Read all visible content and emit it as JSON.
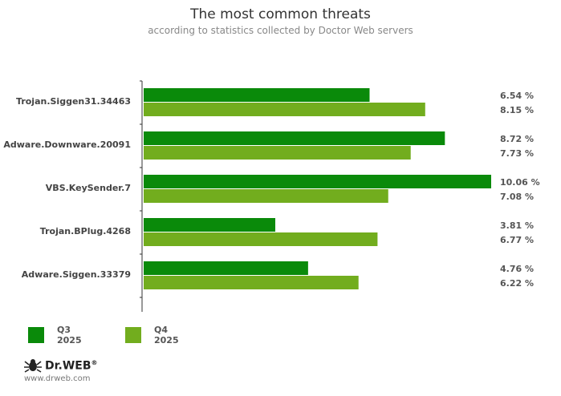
{
  "chart_data": {
    "type": "bar",
    "orientation": "horizontal",
    "title": "The most common threats",
    "subtitle": "according to statistics collected by Doctor Web servers",
    "categories": [
      "Trojan.Siggen31.34463",
      "Adware.Downware.20091",
      "VBS.KeySender.7",
      "Trojan.BPlug.4268",
      "Adware.Siggen.33379"
    ],
    "series": [
      {
        "name": "Q3 2025",
        "color": "#0a8a0a",
        "values": [
          6.54,
          8.72,
          10.06,
          3.81,
          4.76
        ]
      },
      {
        "name": "Q4 2025",
        "color": "#72ad1e",
        "values": [
          8.15,
          7.73,
          7.08,
          6.77,
          6.22
        ]
      }
    ],
    "value_labels": [
      [
        "6.54 %",
        "8.15 %"
      ],
      [
        "8.72 %",
        "7.73 %"
      ],
      [
        "10.06 %",
        "7.08 %"
      ],
      [
        "3.81 %",
        "6.77 %"
      ],
      [
        "4.76 %",
        "6.22 %"
      ]
    ],
    "xlim": [
      0,
      10.06
    ],
    "legend": "bottom-left"
  },
  "legend": {
    "items": [
      {
        "label": "Q3 2025",
        "color": "#0a8a0a"
      },
      {
        "label": "Q4 2025",
        "color": "#72ad1e"
      }
    ]
  },
  "logo": {
    "name": "Dr.WEB",
    "registered": "®",
    "url": "www.drweb.com",
    "icon": "spider-icon"
  }
}
